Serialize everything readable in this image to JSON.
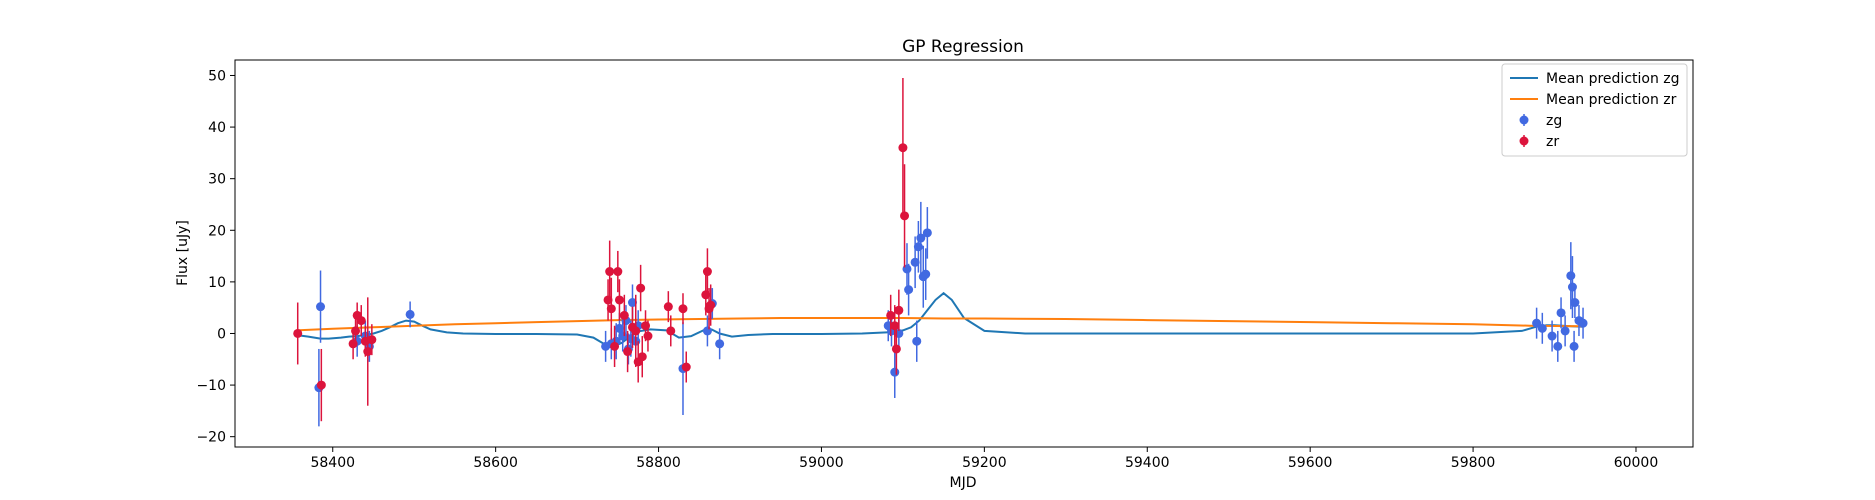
{
  "chart_data": {
    "type": "scatter",
    "title": "GP Regression",
    "xlabel": "MJD",
    "ylabel": "Flux [uJy]",
    "xlim": [
      58280,
      60070
    ],
    "ylim": [
      -22,
      53
    ],
    "xticks": [
      58400,
      58600,
      58800,
      59000,
      59200,
      59400,
      59600,
      59800,
      60000
    ],
    "yticks": [
      -20,
      -10,
      0,
      10,
      20,
      30,
      40,
      50
    ],
    "grid": false,
    "legend_position": "top-right",
    "lines": [
      {
        "name": "Mean prediction zg",
        "color": "#1f77b4",
        "x": [
          58355,
          58370,
          58385,
          58395,
          58410,
          58420,
          58430,
          58440,
          58450,
          58460,
          58470,
          58480,
          58490,
          58500,
          58510,
          58520,
          58540,
          58560,
          58600,
          58650,
          58700,
          58720,
          58735,
          58745,
          58755,
          58765,
          58775,
          58790,
          58810,
          58825,
          58840,
          58855,
          58865,
          58875,
          58890,
          58910,
          58940,
          59000,
          59050,
          59080,
          59090,
          59100,
          59110,
          59120,
          59130,
          59140,
          59150,
          59160,
          59175,
          59200,
          59250,
          59300,
          59400,
          59500,
          59600,
          59700,
          59800,
          59860,
          59875,
          59890,
          59900,
          59910,
          59920,
          59935
        ],
        "y": [
          -0.3,
          -0.6,
          -1.0,
          -1.0,
          -0.8,
          -0.6,
          -0.5,
          -0.3,
          0.0,
          0.5,
          1.2,
          2.0,
          2.5,
          2.3,
          1.5,
          0.8,
          0.2,
          0.0,
          -0.1,
          -0.1,
          -0.2,
          -0.8,
          -2.2,
          -2.5,
          -1.8,
          -0.6,
          0.4,
          0.8,
          0.6,
          -0.8,
          -0.5,
          0.6,
          0.8,
          0.0,
          -0.6,
          -0.3,
          -0.1,
          -0.1,
          0.0,
          0.2,
          0.3,
          0.6,
          1.2,
          2.5,
          4.5,
          6.5,
          7.8,
          6.5,
          3.0,
          0.5,
          0.0,
          0.0,
          0.0,
          0.0,
          0.0,
          0.0,
          0.0,
          0.5,
          1.2,
          1.6,
          1.6,
          1.5,
          1.4,
          1.3
        ]
      },
      {
        "name": "Mean prediction zr",
        "color": "#ff7f0e",
        "x": [
          58355,
          58400,
          58450,
          58500,
          58550,
          58600,
          58650,
          58700,
          58750,
          58800,
          58850,
          58900,
          58950,
          59000,
          59050,
          59100,
          59150,
          59200,
          59300,
          59400,
          59500,
          59600,
          59700,
          59800,
          59870,
          59935
        ],
        "y": [
          0.6,
          0.9,
          1.2,
          1.5,
          1.8,
          2.0,
          2.2,
          2.4,
          2.6,
          2.7,
          2.8,
          2.9,
          3.0,
          3.0,
          3.0,
          3.0,
          2.9,
          2.9,
          2.8,
          2.6,
          2.4,
          2.2,
          2.0,
          1.8,
          1.5,
          1.4
        ]
      }
    ],
    "series": [
      {
        "name": "zg",
        "color": "#4169e1",
        "points": [
          [
            58383,
            -10.5,
            7.5
          ],
          [
            58385,
            5.2,
            7
          ],
          [
            58430,
            -1.5,
            3
          ],
          [
            58440,
            -0.5,
            3
          ],
          [
            58445,
            -2.5,
            3
          ],
          [
            58495,
            3.7,
            2.5
          ],
          [
            58735,
            -2.5,
            3
          ],
          [
            58742,
            -2.0,
            3
          ],
          [
            58748,
            -1.5,
            3.5
          ],
          [
            58752,
            1.0,
            3
          ],
          [
            58756,
            -0.5,
            3
          ],
          [
            58760,
            2.5,
            3
          ],
          [
            58763,
            -3.0,
            3
          ],
          [
            58766,
            -1.0,
            3.5
          ],
          [
            58768,
            6.0,
            3.5
          ],
          [
            58772,
            -1.5,
            3
          ],
          [
            58775,
            1.5,
            3
          ],
          [
            58830,
            -6.8,
            9
          ],
          [
            58860,
            0.5,
            3
          ],
          [
            58866,
            5.8,
            3
          ],
          [
            58875,
            -2.0,
            3
          ],
          [
            59082,
            1.5,
            3
          ],
          [
            59086,
            0.5,
            3
          ],
          [
            59090,
            -7.5,
            5
          ],
          [
            59095,
            0.0,
            3
          ],
          [
            59105,
            12.5,
            5
          ],
          [
            59107,
            8.5,
            5
          ],
          [
            59115,
            13.8,
            5
          ],
          [
            59117,
            -1.5,
            4
          ],
          [
            59119,
            16.8,
            5
          ],
          [
            59122,
            18.5,
            7
          ],
          [
            59125,
            11.0,
            6
          ],
          [
            59128,
            11.5,
            5
          ],
          [
            59130,
            19.5,
            5
          ],
          [
            59878,
            2.0,
            3
          ],
          [
            59885,
            1.0,
            3
          ],
          [
            59897,
            -0.5,
            3
          ],
          [
            59904,
            -2.5,
            3
          ],
          [
            59908,
            4.0,
            3
          ],
          [
            59913,
            0.5,
            3
          ],
          [
            59920,
            11.2,
            6.5
          ],
          [
            59922,
            9.0,
            6
          ],
          [
            59924,
            -2.5,
            3
          ],
          [
            59925,
            6.0,
            3
          ],
          [
            59930,
            2.5,
            3
          ],
          [
            59935,
            2.0,
            3
          ]
        ]
      },
      {
        "name": "zr",
        "color": "#dc143c",
        "points": [
          [
            58357,
            0.0,
            6
          ],
          [
            58386,
            -10.0,
            7
          ],
          [
            58425,
            -2.0,
            3
          ],
          [
            58428,
            0.5,
            3
          ],
          [
            58430,
            3.5,
            2.5
          ],
          [
            58435,
            2.5,
            3
          ],
          [
            58440,
            -1.5,
            3
          ],
          [
            58443,
            -3.5,
            10.5
          ],
          [
            58448,
            -1.2,
            3
          ],
          [
            58738,
            6.5,
            4
          ],
          [
            58740,
            12.0,
            6
          ],
          [
            58742,
            4.8,
            6
          ],
          [
            58746,
            -2.5,
            4
          ],
          [
            58750,
            12.0,
            4
          ],
          [
            58752,
            6.5,
            4
          ],
          [
            58758,
            3.5,
            4
          ],
          [
            58762,
            -3.5,
            4
          ],
          [
            58768,
            1.2,
            4
          ],
          [
            58772,
            0.5,
            7
          ],
          [
            58775,
            -5.5,
            4
          ],
          [
            58778,
            8.8,
            4.5
          ],
          [
            58780,
            -4.5,
            4
          ],
          [
            58784,
            1.5,
            3
          ],
          [
            58787,
            -0.5,
            3
          ],
          [
            58812,
            5.2,
            3
          ],
          [
            58815,
            0.5,
            3
          ],
          [
            58830,
            4.8,
            3
          ],
          [
            58834,
            -6.5,
            3
          ],
          [
            58858,
            7.5,
            4
          ],
          [
            58860,
            12.0,
            4.5
          ],
          [
            58862,
            4.8,
            4
          ],
          [
            58864,
            5.5,
            4
          ],
          [
            59085,
            3.5,
            4
          ],
          [
            59090,
            1.5,
            4
          ],
          [
            59092,
            -3.0,
            5
          ],
          [
            59095,
            4.5,
            4
          ],
          [
            59100,
            36.0,
            13.5
          ],
          [
            59102,
            22.8,
            10
          ]
        ]
      }
    ]
  }
}
